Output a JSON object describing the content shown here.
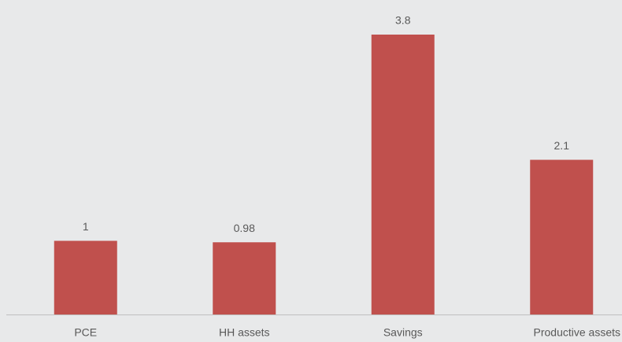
{
  "chart_data": {
    "type": "bar",
    "categories": [
      "PCE",
      "HH assets",
      "Savings",
      "Productive assets"
    ],
    "values": [
      1,
      0.98,
      3.8,
      2.1
    ],
    "color": "#c0504d"
  }
}
